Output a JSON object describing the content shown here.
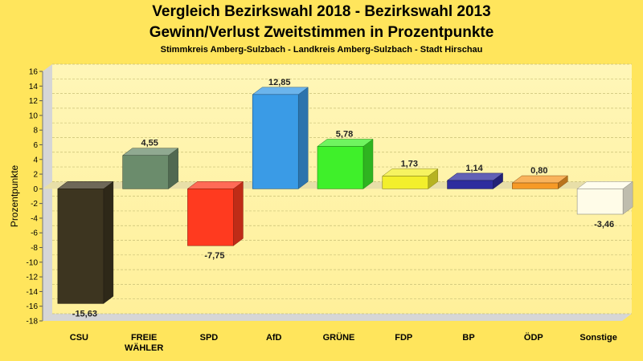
{
  "chart_data": {
    "type": "bar",
    "title": "Vergleich Bezirkswahl 2018 - Bezirkswahl 2013",
    "title_line2": "Gewinn/Verlust Zweitstimmen in Prozentpunkte",
    "subtitle": "Stimmkreis Amberg-Sulzbach - Landkreis Amberg-Sulzbach - Stadt Hirschau",
    "xlabel": "",
    "ylabel": "Prozentpunkte",
    "ylim": [
      -18,
      16
    ],
    "yticks": [
      "16",
      "14",
      "12",
      "10",
      "8",
      "6",
      "4",
      "2",
      "0",
      "-2",
      "-4",
      "-6",
      "-8",
      "-10",
      "-12",
      "-14",
      "-16",
      "-18"
    ],
    "categories": [
      "CSU",
      "FREIE WÄHLER",
      "SPD",
      "AfD",
      "GRÜNE",
      "FDP",
      "BP",
      "ÖDP",
      "Sonstige"
    ],
    "category_lines": [
      [
        "CSU"
      ],
      [
        "FREIE",
        "WÄHLER"
      ],
      [
        "SPD"
      ],
      [
        "AfD"
      ],
      [
        "GRÜNE"
      ],
      [
        "FDP"
      ],
      [
        "BP"
      ],
      [
        "ÖDP"
      ],
      [
        "Sonstige"
      ]
    ],
    "values": [
      -15.63,
      4.55,
      -7.75,
      12.85,
      5.78,
      1.73,
      1.14,
      0.8,
      -3.46
    ],
    "value_labels": [
      "-15,63",
      "4,55",
      "-7,75",
      "12,85",
      "5,78",
      "1,73",
      "1,14",
      "0,80",
      "-3,46"
    ],
    "colors": [
      "#3d3520",
      "#6b8c6c",
      "#ff3a1f",
      "#3a9be6",
      "#3ff02a",
      "#f3ef2c",
      "#2e2c9e",
      "#f79a26",
      "#fffce8"
    ],
    "grid": true
  }
}
